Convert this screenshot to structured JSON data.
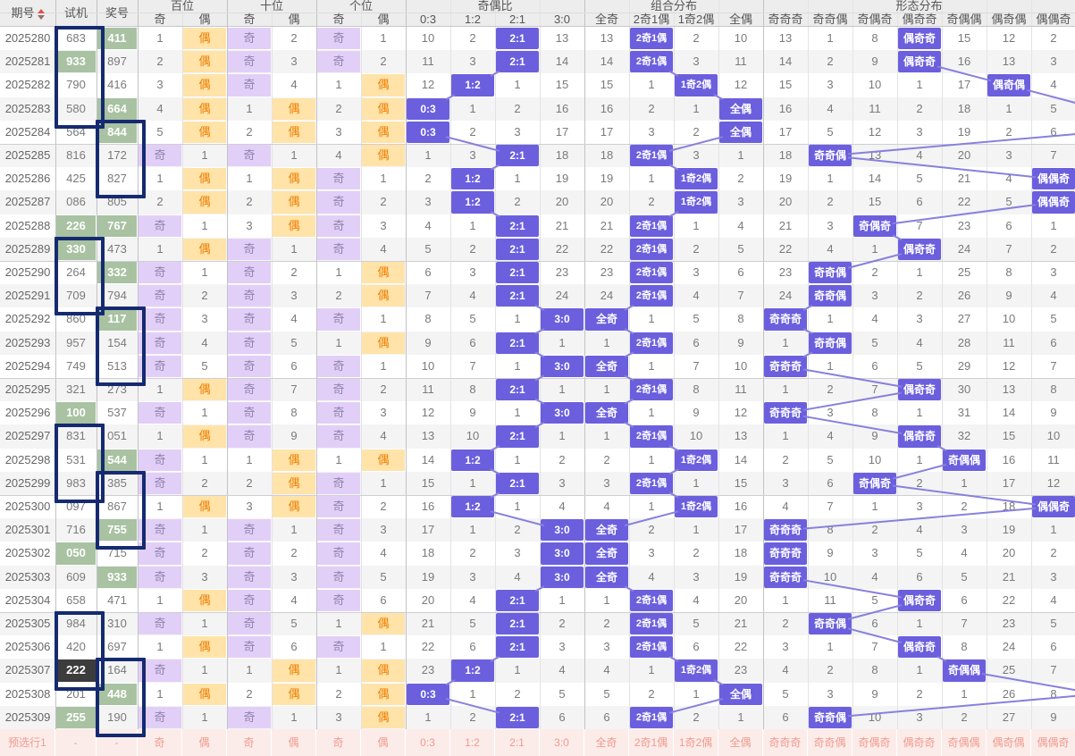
{
  "table": {
    "fixed_headers": {
      "issue": "期号",
      "shiji": "试机",
      "jiang": "奖号"
    },
    "groups": [
      {
        "label": "百位",
        "span": 2
      },
      {
        "label": "十位",
        "span": 2
      },
      {
        "label": "个位",
        "span": 2
      },
      {
        "label": "奇偶比",
        "span": 4
      },
      {
        "label": "组合分布",
        "span": 4
      },
      {
        "label": "形态分布",
        "span": 7
      }
    ],
    "sub_headers": [
      "奇",
      "偶",
      "奇",
      "偶",
      "奇",
      "偶",
      "0:3",
      "1:2",
      "2:1",
      "3:0",
      "全奇",
      "2奇1偶",
      "1奇2偶",
      "全偶",
      "奇奇奇",
      "奇奇偶",
      "奇偶奇",
      "偶奇奇",
      "奇偶偶",
      "偶奇偶",
      "偶偶奇"
    ],
    "ratio_labels": [
      "0:3",
      "1:2",
      "2:1",
      "3:0"
    ],
    "combo_labels": [
      "全奇",
      "2奇1偶",
      "1奇2偶",
      "全偶"
    ],
    "pattern_labels": [
      "奇奇奇",
      "奇奇偶",
      "奇偶奇",
      "偶奇奇",
      "奇偶偶",
      "偶奇偶",
      "偶偶奇"
    ],
    "rows": [
      {
        "issue": "2025280",
        "shiji": "683",
        "sjs": "",
        "jiang": "411",
        "jjs": "green",
        "cells": [
          "1",
          "偶",
          "奇",
          "2",
          "奇",
          "1",
          "10",
          "2",
          "2:1",
          "13",
          "13",
          "2奇1偶",
          "2",
          "10",
          "13",
          "1",
          "8",
          "偶奇奇",
          "15",
          "12",
          "2"
        ],
        "ph": 3
      },
      {
        "issue": "2025281",
        "shiji": "933",
        "sjs": "green",
        "jiang": "897",
        "jjs": "",
        "cells": [
          "2",
          "偶",
          "奇",
          "3",
          "奇",
          "2",
          "11",
          "3",
          "2:1",
          "14",
          "14",
          "2奇1偶",
          "3",
          "11",
          "14",
          "2",
          "9",
          "偶奇奇",
          "16",
          "13",
          "3"
        ],
        "ph": 3
      },
      {
        "issue": "2025282",
        "shiji": "790",
        "sjs": "",
        "jiang": "416",
        "jjs": "",
        "cells": [
          "3",
          "偶",
          "奇",
          "4",
          "1",
          "偶",
          "12",
          "1:2",
          "1",
          "15",
          "15",
          "1",
          "1奇2偶",
          "12",
          "15",
          "3",
          "10",
          "1",
          "17",
          "偶奇偶",
          "4"
        ],
        "ph": 5
      },
      {
        "issue": "2025283",
        "shiji": "580",
        "sjs": "",
        "jiang": "664",
        "jjs": "green",
        "cells": [
          "4",
          "偶",
          "1",
          "偶",
          "2",
          "偶",
          "0:3",
          "1",
          "2",
          "16",
          "16",
          "2",
          "1",
          "全偶",
          "16",
          "4",
          "11",
          "2",
          "18",
          "1",
          "5"
        ],
        "ph": 7
      },
      {
        "issue": "2025284",
        "shiji": "564",
        "sjs": "",
        "jiang": "844",
        "jjs": "green",
        "cells": [
          "5",
          "偶",
          "2",
          "偶",
          "3",
          "偶",
          "0:3",
          "2",
          "3",
          "17",
          "17",
          "3",
          "2",
          "全偶",
          "17",
          "5",
          "12",
          "3",
          "19",
          "2",
          "6"
        ],
        "ph": 7
      },
      {
        "issue": "2025285",
        "shiji": "816",
        "sjs": "",
        "jiang": "172",
        "jjs": "",
        "cells": [
          "奇",
          "1",
          "奇",
          "1",
          "4",
          "偶",
          "1",
          "3",
          "2:1",
          "18",
          "18",
          "2奇1偶",
          "3",
          "1",
          "18",
          "奇奇偶",
          "13",
          "4",
          "20",
          "3",
          "7"
        ],
        "ph": 1
      },
      {
        "issue": "2025286",
        "shiji": "425",
        "sjs": "",
        "jiang": "827",
        "jjs": "",
        "cells": [
          "1",
          "偶",
          "1",
          "偶",
          "奇",
          "1",
          "2",
          "1:2",
          "1",
          "19",
          "19",
          "1",
          "1奇2偶",
          "2",
          "19",
          "1",
          "14",
          "5",
          "21",
          "4",
          "偶偶奇"
        ],
        "ph": 6
      },
      {
        "issue": "2025287",
        "shiji": "086",
        "sjs": "",
        "jiang": "805",
        "jjs": "",
        "cells": [
          "2",
          "偶",
          "2",
          "偶",
          "奇",
          "2",
          "3",
          "1:2",
          "2",
          "20",
          "20",
          "2",
          "1奇2偶",
          "3",
          "20",
          "2",
          "15",
          "6",
          "22",
          "5",
          "偶偶奇"
        ],
        "ph": 6
      },
      {
        "issue": "2025288",
        "shiji": "226",
        "sjs": "green",
        "jiang": "767",
        "jjs": "green",
        "cells": [
          "奇",
          "1",
          "3",
          "偶",
          "奇",
          "3",
          "4",
          "1",
          "2:1",
          "21",
          "21",
          "2奇1偶",
          "1",
          "4",
          "21",
          "3",
          "奇偶奇",
          "7",
          "23",
          "6",
          "1"
        ],
        "ph": 2
      },
      {
        "issue": "2025289",
        "shiji": "330",
        "sjs": "green",
        "jiang": "473",
        "jjs": "",
        "cells": [
          "1",
          "偶",
          "奇",
          "1",
          "奇",
          "4",
          "5",
          "2",
          "2:1",
          "22",
          "22",
          "2奇1偶",
          "2",
          "5",
          "22",
          "4",
          "1",
          "偶奇奇",
          "24",
          "7",
          "2"
        ],
        "ph": 3
      },
      {
        "issue": "2025290",
        "shiji": "264",
        "sjs": "",
        "jiang": "332",
        "jjs": "green",
        "cells": [
          "奇",
          "1",
          "奇",
          "2",
          "1",
          "偶",
          "6",
          "3",
          "2:1",
          "23",
          "23",
          "2奇1偶",
          "3",
          "6",
          "23",
          "奇奇偶",
          "2",
          "1",
          "25",
          "8",
          "3"
        ],
        "ph": 1
      },
      {
        "issue": "2025291",
        "shiji": "709",
        "sjs": "",
        "jiang": "794",
        "jjs": "",
        "cells": [
          "奇",
          "2",
          "奇",
          "3",
          "2",
          "偶",
          "7",
          "4",
          "2:1",
          "24",
          "24",
          "2奇1偶",
          "4",
          "7",
          "24",
          "奇奇偶",
          "3",
          "2",
          "26",
          "9",
          "4"
        ],
        "ph": 1
      },
      {
        "issue": "2025292",
        "shiji": "860",
        "sjs": "",
        "jiang": "117",
        "jjs": "green",
        "cells": [
          "奇",
          "3",
          "奇",
          "4",
          "奇",
          "1",
          "8",
          "5",
          "1",
          "3:0",
          "全奇",
          "1",
          "5",
          "8",
          "奇奇奇",
          "1",
          "4",
          "3",
          "27",
          "10",
          "5"
        ],
        "ph": 0
      },
      {
        "issue": "2025293",
        "shiji": "957",
        "sjs": "",
        "jiang": "154",
        "jjs": "",
        "cells": [
          "奇",
          "4",
          "奇",
          "5",
          "1",
          "偶",
          "9",
          "6",
          "2:1",
          "1",
          "1",
          "2奇1偶",
          "6",
          "9",
          "1",
          "奇奇偶",
          "5",
          "4",
          "28",
          "11",
          "6"
        ],
        "ph": 1
      },
      {
        "issue": "2025294",
        "shiji": "749",
        "sjs": "",
        "jiang": "513",
        "jjs": "",
        "cells": [
          "奇",
          "5",
          "奇",
          "6",
          "奇",
          "1",
          "10",
          "7",
          "1",
          "3:0",
          "全奇",
          "1",
          "7",
          "10",
          "奇奇奇",
          "1",
          "6",
          "5",
          "29",
          "12",
          "7"
        ],
        "ph": 0
      },
      {
        "issue": "2025295",
        "shiji": "321",
        "sjs": "",
        "jiang": "273",
        "jjs": "",
        "cells": [
          "1",
          "偶",
          "奇",
          "7",
          "奇",
          "2",
          "11",
          "8",
          "2:1",
          "1",
          "1",
          "2奇1偶",
          "8",
          "11",
          "1",
          "2",
          "7",
          "偶奇奇",
          "30",
          "13",
          "8"
        ],
        "ph": 3
      },
      {
        "issue": "2025296",
        "shiji": "100",
        "sjs": "green",
        "jiang": "537",
        "jjs": "",
        "cells": [
          "奇",
          "1",
          "奇",
          "8",
          "奇",
          "3",
          "12",
          "9",
          "1",
          "3:0",
          "全奇",
          "1",
          "9",
          "12",
          "奇奇奇",
          "3",
          "8",
          "1",
          "31",
          "14",
          "9"
        ],
        "ph": 0
      },
      {
        "issue": "2025297",
        "shiji": "831",
        "sjs": "",
        "jiang": "051",
        "jjs": "",
        "cells": [
          "1",
          "偶",
          "奇",
          "9",
          "奇",
          "4",
          "13",
          "10",
          "2:1",
          "1",
          "1",
          "2奇1偶",
          "10",
          "13",
          "1",
          "4",
          "9",
          "偶奇奇",
          "32",
          "15",
          "10"
        ],
        "ph": 3
      },
      {
        "issue": "2025298",
        "shiji": "531",
        "sjs": "",
        "jiang": "544",
        "jjs": "green",
        "cells": [
          "奇",
          "1",
          "1",
          "偶",
          "1",
          "偶",
          "14",
          "1:2",
          "1",
          "2",
          "2",
          "1",
          "1奇2偶",
          "14",
          "2",
          "5",
          "10",
          "1",
          "奇偶偶",
          "16",
          "11"
        ],
        "ph": 4
      },
      {
        "issue": "2025299",
        "shiji": "983",
        "sjs": "",
        "jiang": "385",
        "jjs": "",
        "cells": [
          "奇",
          "2",
          "2",
          "偶",
          "奇",
          "1",
          "15",
          "1",
          "2:1",
          "3",
          "3",
          "2奇1偶",
          "1",
          "15",
          "3",
          "6",
          "奇偶奇",
          "2",
          "1",
          "17",
          "12"
        ],
        "ph": 2
      },
      {
        "issue": "2025300",
        "shiji": "097",
        "sjs": "",
        "jiang": "867",
        "jjs": "",
        "cells": [
          "1",
          "偶",
          "3",
          "偶",
          "奇",
          "2",
          "16",
          "1:2",
          "1",
          "4",
          "4",
          "1",
          "1奇2偶",
          "16",
          "4",
          "7",
          "1",
          "3",
          "2",
          "18",
          "偶偶奇"
        ],
        "ph": 6
      },
      {
        "issue": "2025301",
        "shiji": "716",
        "sjs": "",
        "jiang": "755",
        "jjs": "green",
        "cells": [
          "奇",
          "1",
          "奇",
          "1",
          "奇",
          "3",
          "17",
          "1",
          "2",
          "3:0",
          "全奇",
          "2",
          "1",
          "17",
          "奇奇奇",
          "8",
          "2",
          "4",
          "3",
          "19",
          "1"
        ],
        "ph": 0
      },
      {
        "issue": "2025302",
        "shiji": "050",
        "sjs": "green",
        "jiang": "715",
        "jjs": "",
        "cells": [
          "奇",
          "2",
          "奇",
          "2",
          "奇",
          "4",
          "18",
          "2",
          "3",
          "3:0",
          "全奇",
          "3",
          "2",
          "18",
          "奇奇奇",
          "9",
          "3",
          "5",
          "4",
          "20",
          "2"
        ],
        "ph": 0
      },
      {
        "issue": "2025303",
        "shiji": "609",
        "sjs": "",
        "jiang": "933",
        "jjs": "green",
        "cells": [
          "奇",
          "3",
          "奇",
          "3",
          "奇",
          "5",
          "19",
          "3",
          "4",
          "3:0",
          "全奇",
          "4",
          "3",
          "19",
          "奇奇奇",
          "10",
          "4",
          "6",
          "5",
          "21",
          "3"
        ],
        "ph": 0
      },
      {
        "issue": "2025304",
        "shiji": "658",
        "sjs": "",
        "jiang": "471",
        "jjs": "",
        "cells": [
          "1",
          "偶",
          "奇",
          "4",
          "奇",
          "6",
          "20",
          "4",
          "2:1",
          "1",
          "1",
          "2奇1偶",
          "4",
          "20",
          "1",
          "11",
          "5",
          "偶奇奇",
          "6",
          "22",
          "4"
        ],
        "ph": 3
      },
      {
        "issue": "2025305",
        "shiji": "984",
        "sjs": "",
        "jiang": "310",
        "jjs": "",
        "cells": [
          "奇",
          "1",
          "奇",
          "5",
          "1",
          "偶",
          "21",
          "5",
          "2:1",
          "2",
          "2",
          "2奇1偶",
          "5",
          "21",
          "2",
          "奇奇偶",
          "6",
          "1",
          "7",
          "23",
          "5"
        ],
        "ph": 1
      },
      {
        "issue": "2025306",
        "shiji": "420",
        "sjs": "",
        "jiang": "697",
        "jjs": "",
        "cells": [
          "1",
          "偶",
          "奇",
          "6",
          "奇",
          "1",
          "22",
          "6",
          "2:1",
          "3",
          "3",
          "2奇1偶",
          "6",
          "22",
          "3",
          "1",
          "7",
          "偶奇奇",
          "8",
          "24",
          "6"
        ],
        "ph": 3
      },
      {
        "issue": "2025307",
        "shiji": "222",
        "sjs": "black",
        "jiang": "164",
        "jjs": "",
        "cells": [
          "奇",
          "1",
          "1",
          "偶",
          "1",
          "偶",
          "23",
          "1:2",
          "1",
          "4",
          "4",
          "1",
          "1奇2偶",
          "23",
          "4",
          "2",
          "8",
          "1",
          "奇偶偶",
          "25",
          "7"
        ],
        "ph": 4
      },
      {
        "issue": "2025308",
        "shiji": "201",
        "sjs": "",
        "jiang": "448",
        "jjs": "green",
        "cells": [
          "1",
          "偶",
          "2",
          "偶",
          "2",
          "偶",
          "0:3",
          "1",
          "2",
          "5",
          "5",
          "2",
          "1",
          "全偶",
          "5",
          "3",
          "9",
          "2",
          "1",
          "26",
          "8"
        ],
        "ph": 7
      },
      {
        "issue": "2025309",
        "shiji": "255",
        "sjs": "green",
        "jiang": "190",
        "jjs": "",
        "cells": [
          "奇",
          "1",
          "奇",
          "1",
          "3",
          "偶",
          "1",
          "2",
          "2:1",
          "6",
          "6",
          "2奇1偶",
          "2",
          "1",
          "6",
          "奇奇偶",
          "10",
          "3",
          "2",
          "27",
          "9"
        ],
        "ph": 1
      }
    ],
    "boxes": [
      {
        "col": "shiji",
        "start": 0,
        "len": 4
      },
      {
        "col": "jiang",
        "start": 4,
        "len": 3
      },
      {
        "col": "shiji",
        "start": 9,
        "len": 3
      },
      {
        "col": "jiang",
        "start": 12,
        "len": 3
      },
      {
        "col": "shiji",
        "start": 17,
        "len": 3
      },
      {
        "col": "jiang",
        "start": 19,
        "len": 3
      },
      {
        "col": "shiji",
        "start": 25,
        "len": 3
      },
      {
        "col": "jiang",
        "start": 27,
        "len": 3
      }
    ],
    "footer": {
      "label": "预选行1",
      "shiji": "-",
      "jiang": "-",
      "cells": [
        "奇",
        "偶",
        "奇",
        "偶",
        "奇",
        "偶",
        "0:3",
        "1:2",
        "2:1",
        "3:0",
        "全奇",
        "2奇1偶",
        "1奇2偶",
        "全偶",
        "奇奇奇",
        "奇奇偶",
        "奇偶奇",
        "偶奇奇",
        "奇偶偶",
        "偶奇偶",
        "偶偶奇"
      ]
    }
  },
  "colors": {
    "highlight_strong": "#6B5FDE",
    "hit_odd_bg": "#E2CFF8",
    "hit_odd_text": "#8F83AD",
    "hit_even_bg": "#FFE3A8",
    "hit_even_text": "#EE7D01",
    "pair_green": "#A8C2A2",
    "triple_black": "#3C3C3C",
    "marker_navy": "#152A70",
    "trend_line": "#8880DD",
    "footer_bg": "#FCECE9",
    "footer_text": "#F09A8E"
  }
}
